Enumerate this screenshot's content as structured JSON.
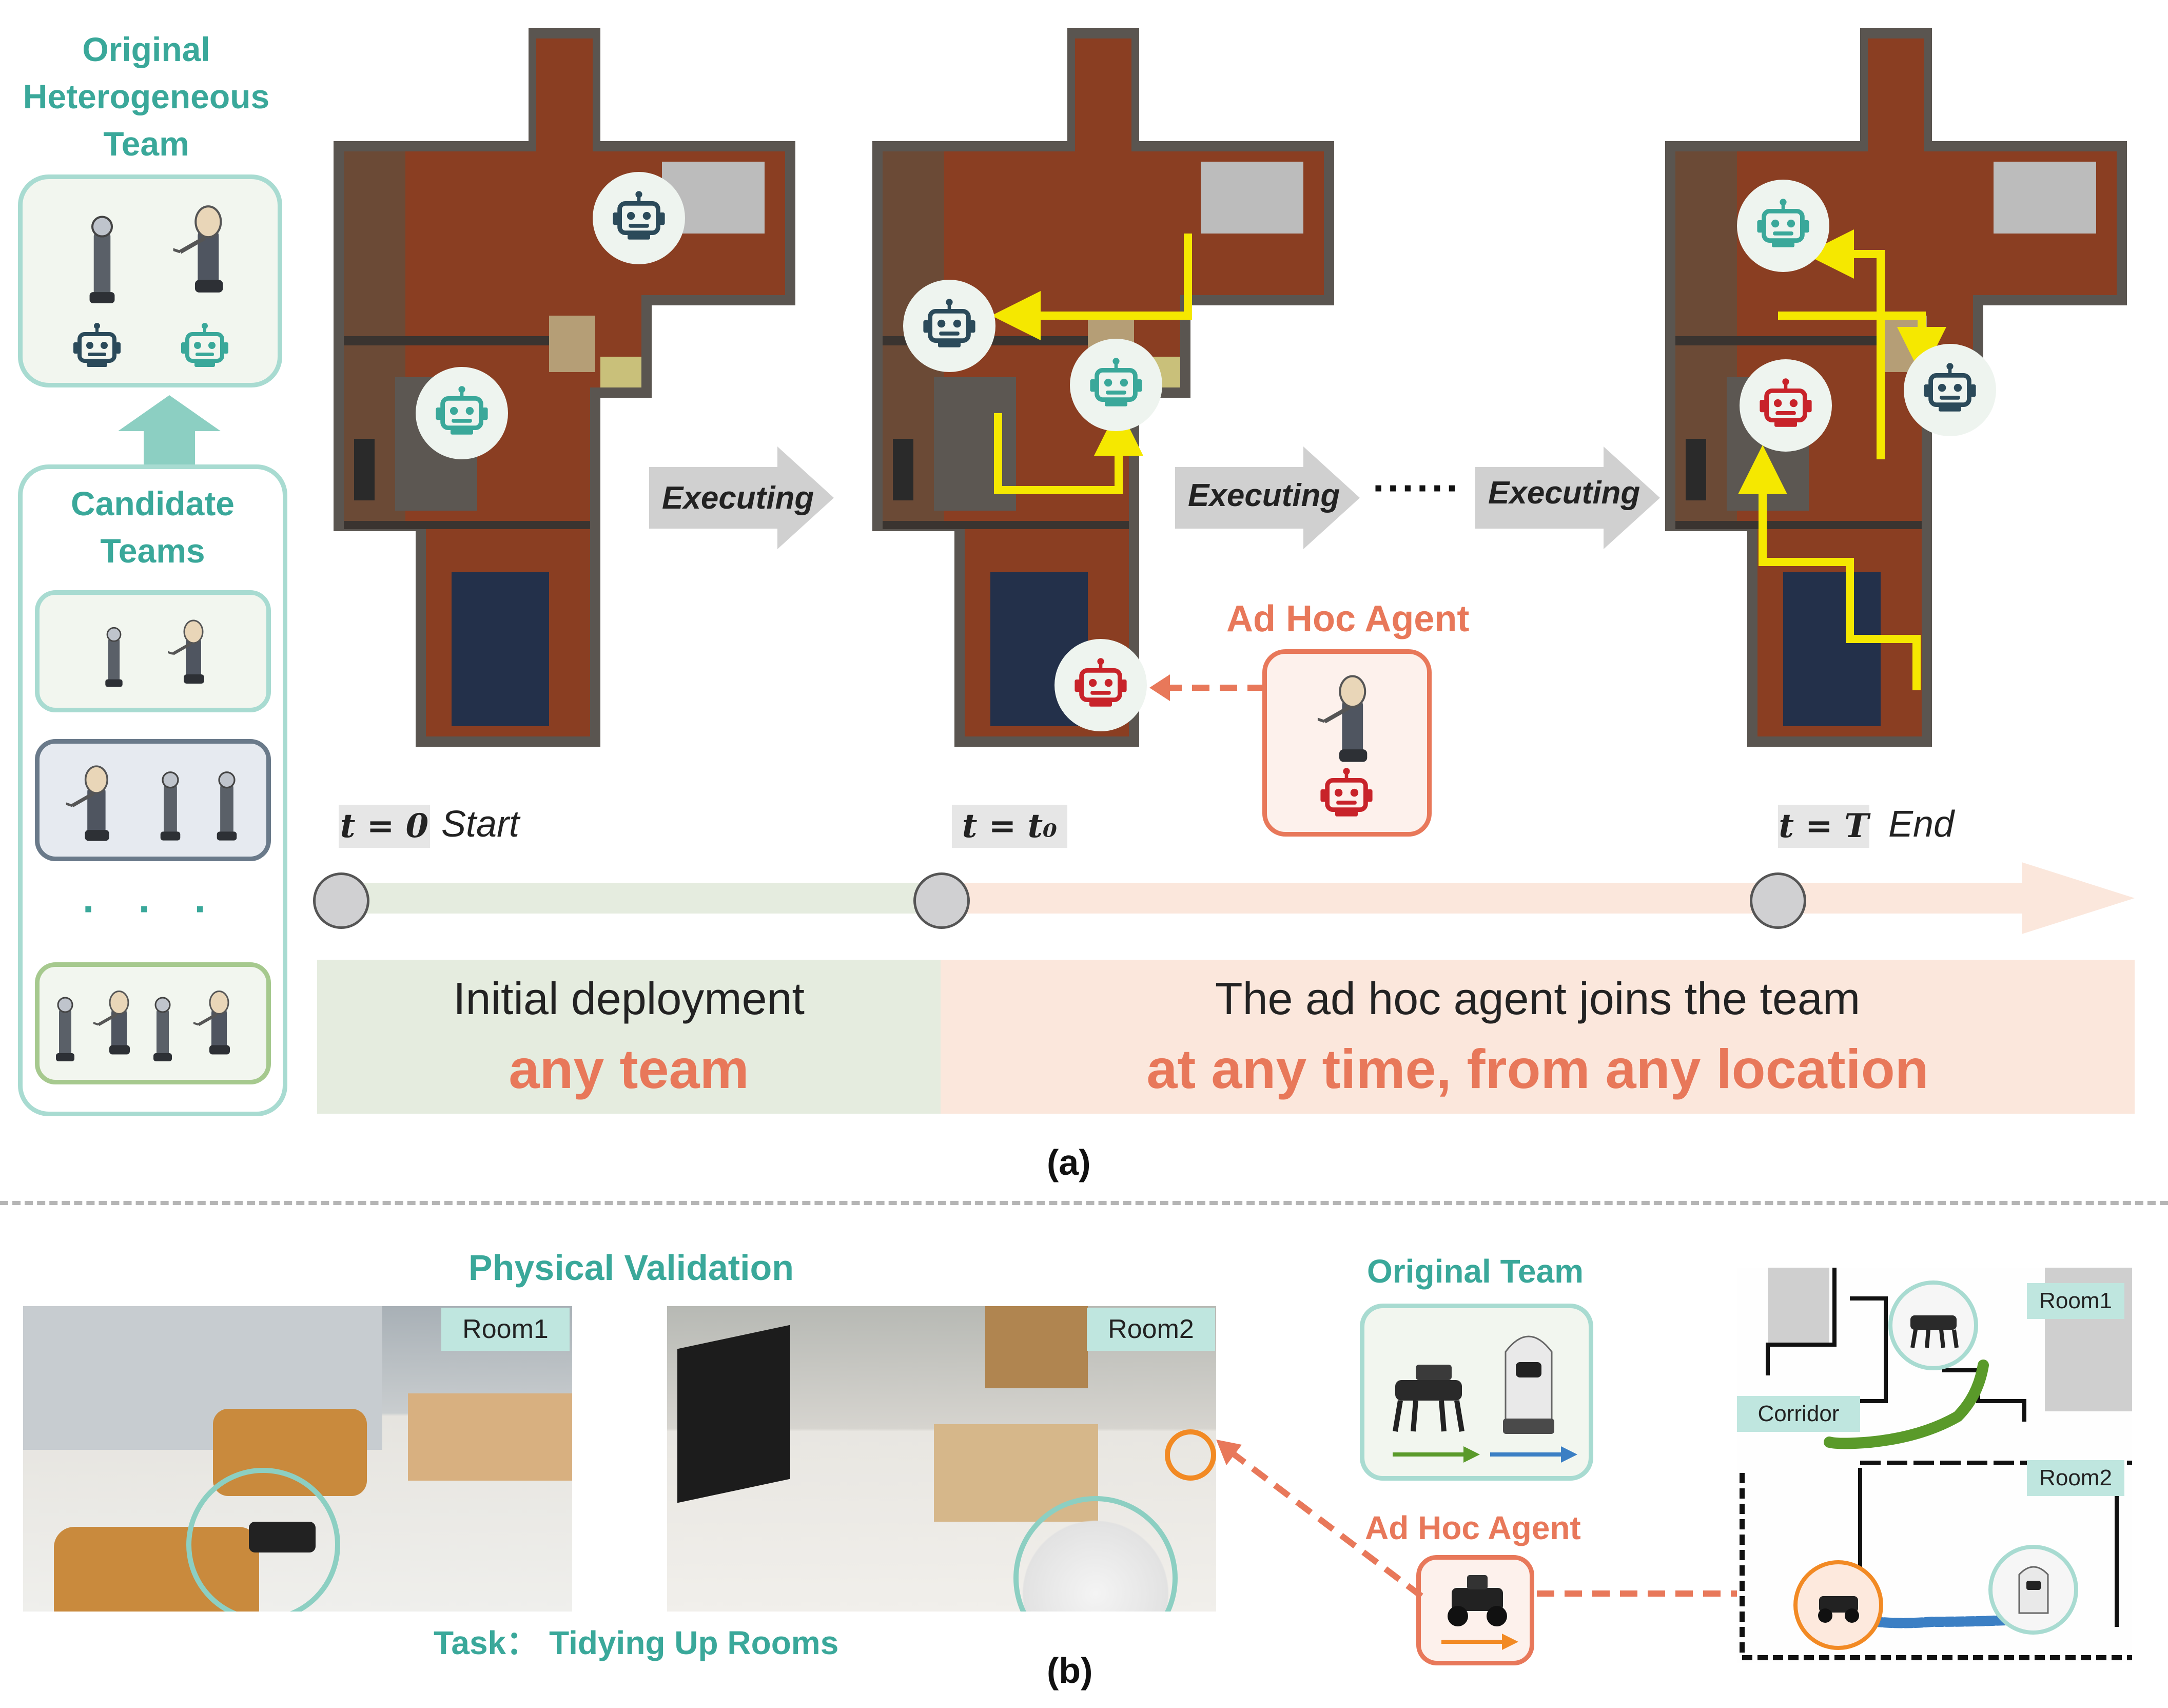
{
  "panel_a": {
    "left_column": {
      "original_team_title": [
        "Original",
        "Heterogeneous",
        "Team"
      ],
      "candidate_teams_title": [
        "Candidate",
        "Teams"
      ],
      "ellipsis": "· · ·"
    },
    "executing_labels": [
      "Executing",
      "Executing",
      "Executing"
    ],
    "dots": "······",
    "ad_hoc_agent_label": "Ad Hoc Agent",
    "timeline": {
      "start_time": "t = 0",
      "start_word": "Start",
      "join_time": "t = t₀",
      "end_time": "t = T",
      "end_word": "End"
    },
    "initial_deployment": {
      "line1": "Initial deployment",
      "line2": "any team"
    },
    "join": {
      "line1": "The ad hoc agent joins the team",
      "line2": "at any time, from any location"
    },
    "caption": "(a)"
  },
  "panel_b": {
    "physical_validation_title": "Physical Validation",
    "room1_label": "Room1",
    "room2_label": "Room2",
    "task_label": "Task：",
    "task_name": "Tidying Up Rooms",
    "original_team_title": "Original Team",
    "ad_hoc_agent_label": "Ad Hoc Agent",
    "map_labels": {
      "room1": "Room1",
      "corridor": "Corridor",
      "room2": "Room2"
    },
    "caption": "(b)"
  },
  "colors": {
    "teal": "#3aa89a",
    "dark_teal": "#2b4a5a",
    "orange": "#e8785a",
    "red": "#c8232a",
    "yellow_path": "#f5e800",
    "green_track": "#5a9a2a",
    "blue_track": "#3b7fc4",
    "green_band": "#e5ecdf",
    "orange_band": "#fbe7dc"
  },
  "icons": [
    "robot-icon",
    "robot-arm-icon",
    "quadruped-robot-icon",
    "service-robot-icon",
    "arrow-right-icon"
  ]
}
